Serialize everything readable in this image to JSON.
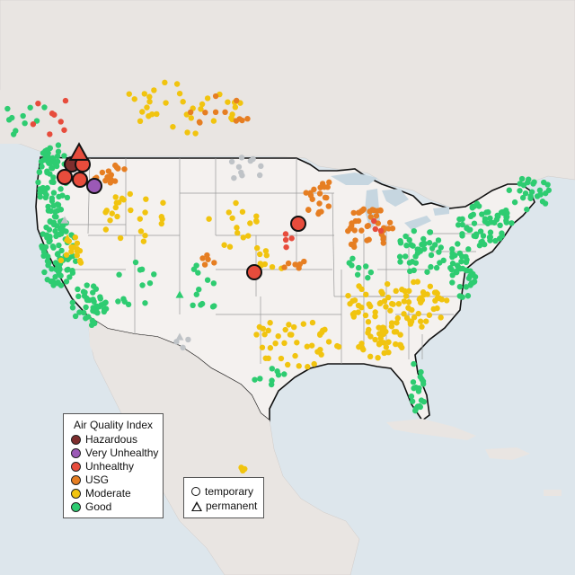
{
  "legend": {
    "title": "Air Quality Index",
    "categories": [
      {
        "label": "Hazardous",
        "color": "#7e2e2e"
      },
      {
        "label": "Very Unhealthy",
        "color": "#9b59b6"
      },
      {
        "label": "Unhealthy",
        "color": "#e74c3c"
      },
      {
        "label": "USG",
        "color": "#e67e22"
      },
      {
        "label": "Moderate",
        "color": "#f1c40f"
      },
      {
        "label": "Good",
        "color": "#2ecc71"
      }
    ]
  },
  "type_legend": {
    "temporary_label": "temporary",
    "permanent_label": "permanent"
  },
  "colors": {
    "water": "#dde6ec",
    "land_us": "#f4f1ef",
    "land_foreign": "#e9e5e2",
    "no_data_station": "#bfc3c7",
    "border": "#111111"
  },
  "station_symbols": {
    "temporary": "circle",
    "permanent": "triangle"
  }
}
